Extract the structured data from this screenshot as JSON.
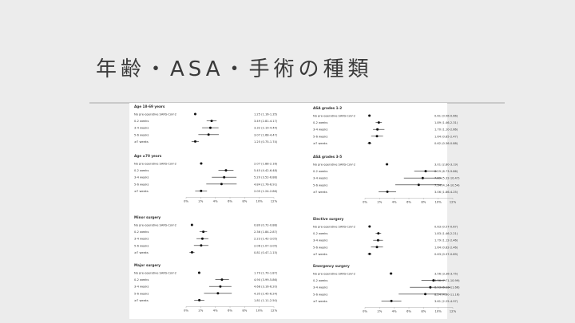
{
  "slide": {
    "title": "年齢・ASA・手術の種類"
  },
  "axis": {
    "ticks": [
      "0%",
      "2%",
      "4%",
      "6%",
      "8%",
      "10%",
      "12%"
    ],
    "xlim": [
      0,
      12
    ]
  },
  "chart_data": [
    {
      "type": "forest",
      "title": "",
      "panels": [
        {
          "title": "Age 18-69 years",
          "rows": [
            {
              "label": "No pre-operative SARS-CoV-2",
              "ci": "1.25 (1.16-1.35)",
              "est": 1.25,
              "lo": 1.16,
              "hi": 1.35
            },
            {
              "label": "0-2 weeks",
              "ci": "3.49 (2.81-4.17)",
              "est": 3.49,
              "lo": 2.81,
              "hi": 4.17
            },
            {
              "label": "3-4 weeks",
              "ci": "3.32 (2.19-4.44)",
              "est": 3.32,
              "lo": 2.19,
              "hi": 4.44
            },
            {
              "label": "5-6 weeks",
              "ci": "3.07 (1.68-4.47)",
              "est": 3.07,
              "lo": 1.68,
              "hi": 4.47
            },
            {
              "label": "≥7 weeks",
              "ci": "1.25 (0.75-1.74)",
              "est": 1.25,
              "lo": 0.75,
              "hi": 1.74
            }
          ]
        },
        {
          "title": "Age ≥70 years",
          "rows": [
            {
              "label": "No pre-operative SARS-CoV-2",
              "ci": "2.07 (1.88-2.16)",
              "est": 2.07,
              "lo": 1.88,
              "hi": 2.16
            },
            {
              "label": "0-2 weeks",
              "ci": "5.45 (4.42-6.48)",
              "est": 5.45,
              "lo": 4.42,
              "hi": 6.48
            },
            {
              "label": "3-4 weeks",
              "ci": "5.20 (3.52-6.88)",
              "est": 5.2,
              "lo": 3.52,
              "hi": 6.88
            },
            {
              "label": "5-6 weeks",
              "ci": "4.84 (2.76-6.91)",
              "est": 4.84,
              "lo": 2.76,
              "hi": 6.91
            },
            {
              "label": "≥7 weeks",
              "ci": "2.05 (1.24-2.86)",
              "est": 2.05,
              "lo": 1.24,
              "hi": 2.86
            }
          ]
        }
      ]
    },
    {
      "type": "forest",
      "title": "",
      "panels": [
        {
          "title": "ASA grades 1-2",
          "rows": [
            {
              "label": "No pre-operative SARS-CoV-2",
              "ci": "0.61 (0.56-0.66)",
              "est": 0.61,
              "lo": 0.56,
              "hi": 0.66
            },
            {
              "label": "0-2 weeks",
              "ci": "1.89 (1.46-2.31)",
              "est": 1.89,
              "lo": 1.46,
              "hi": 2.31
            },
            {
              "label": "3-4 weeks",
              "ci": "1.70 (1.10-2.66)",
              "est": 1.7,
              "lo": 1.1,
              "hi": 2.66
            },
            {
              "label": "5-6 weeks",
              "ci": "1.64 (0.85-2.47)",
              "est": 1.64,
              "lo": 0.85,
              "hi": 2.47
            },
            {
              "label": "≥7 weeks",
              "ci": "0.62 (0.36-0.88)",
              "est": 0.62,
              "lo": 0.36,
              "hi": 0.88
            }
          ]
        },
        {
          "title": "ASA grades 3-5",
          "rows": [
            {
              "label": "No pre-operative SARS-CoV-2",
              "ci": "3.01 (2.80-3.19)",
              "est": 3.01,
              "lo": 2.8,
              "hi": 3.19
            },
            {
              "label": "0-2 weeks",
              "ci": "8.29 (6.73-9.86)",
              "est": 8.29,
              "lo": 6.73,
              "hi": 9.86
            },
            {
              "label": "3-4 weeks",
              "ci": "7.89 (5.32-10.47)",
              "est": 7.89,
              "lo": 5.32,
              "hi": 10.47
            },
            {
              "label": "5-6 weeks",
              "ci": "7.34 (4.14-10.54)",
              "est": 7.34,
              "lo": 4.14,
              "hi": 10.54
            },
            {
              "label": "≥7 weeks",
              "ci": "3.06 (1.86-4.25)",
              "est": 3.06,
              "lo": 1.86,
              "hi": 4.25
            }
          ]
        }
      ]
    },
    {
      "type": "forest",
      "title": "",
      "panels": [
        {
          "title": "Minor surgery",
          "rows": [
            {
              "label": "No pre-operative SARS-CoV-2",
              "ci": "0.80 (0.72-0.88)",
              "est": 0.8,
              "lo": 0.72,
              "hi": 0.88
            },
            {
              "label": "0-2 weeks",
              "ci": "2.36 (1.84-2.87)",
              "est": 2.36,
              "lo": 1.84,
              "hi": 2.87
            },
            {
              "label": "3-4 weeks",
              "ci": "2.23 (1.42-3.05)",
              "est": 2.23,
              "lo": 1.42,
              "hi": 3.05
            },
            {
              "label": "5-6 weeks",
              "ci": "2.06 (1.07-3.05)",
              "est": 2.06,
              "lo": 1.07,
              "hi": 3.05
            },
            {
              "label": "≥7 weeks",
              "ci": "0.81 (0.47-1.15)",
              "est": 0.81,
              "lo": 0.47,
              "hi": 1.15
            }
          ]
        },
        {
          "title": "Major surgery",
          "rows": [
            {
              "label": "No pre-operative SARS-CoV-2",
              "ci": "1.79 (1.70-1.87)",
              "est": 1.79,
              "lo": 1.7,
              "hi": 1.87
            },
            {
              "label": "0-2 weeks",
              "ci": "4.90 (3.99-5.86)",
              "est": 4.9,
              "lo": 3.99,
              "hi": 5.86
            },
            {
              "label": "3-4 weeks",
              "ci": "4.68 (3.16-6.20)",
              "est": 4.68,
              "lo": 3.16,
              "hi": 6.2
            },
            {
              "label": "5-6 weeks",
              "ci": "4.35 (2.45-6.24)",
              "est": 4.35,
              "lo": 2.45,
              "hi": 6.24
            },
            {
              "label": "≥7 weeks",
              "ci": "1.81 (1.11-2.50)",
              "est": 1.81,
              "lo": 1.11,
              "hi": 2.5
            }
          ]
        }
      ]
    },
    {
      "type": "forest",
      "title": "",
      "panels": [
        {
          "title": "Elective surgery",
          "rows": [
            {
              "label": "No pre-operative SARS-CoV-2",
              "ci": "0.63 (0.57-0.67)",
              "est": 0.63,
              "lo": 0.57,
              "hi": 0.67
            },
            {
              "label": "0-2 weeks",
              "ci": "1.83 (1.46-2.21)",
              "est": 1.83,
              "lo": 1.46,
              "hi": 2.21
            },
            {
              "label": "3-4 weeks",
              "ci": "1.79 (1.12-2.46)",
              "est": 1.79,
              "lo": 1.12,
              "hi": 2.46
            },
            {
              "label": "5-6 weeks",
              "ci": "1.64 (0.82-2.46)",
              "est": 1.64,
              "lo": 0.82,
              "hi": 2.46
            },
            {
              "label": "≥7 weeks",
              "ci": "0.63 (0.37-0.89)",
              "est": 0.63,
              "lo": 0.37,
              "hi": 0.89
            }
          ]
        },
        {
          "title": "Emergency surgery",
          "rows": [
            {
              "label": "No pre-operative SARS-CoV-2",
              "ci": "3.56 (3.36-3.75)",
              "est": 3.56,
              "lo": 3.36,
              "hi": 3.75
            },
            {
              "label": "0-2 weeks",
              "ci": "9.36 (7.71-10.99)",
              "est": 9.36,
              "lo": 7.71,
              "hi": 10.99
            },
            {
              "label": "3-4 weeks",
              "ci": "8.93 (6.13-11.66)",
              "est": 8.93,
              "lo": 6.13,
              "hi": 11.66
            },
            {
              "label": "5-6 weeks",
              "ci": "8.24 (4.60-11.16)",
              "est": 8.24,
              "lo": 4.6,
              "hi": 11.16
            },
            {
              "label": "≥7 weeks",
              "ci": "3.61 (2.25-4.97)",
              "est": 3.61,
              "lo": 2.25,
              "hi": 4.97
            }
          ]
        }
      ]
    }
  ]
}
